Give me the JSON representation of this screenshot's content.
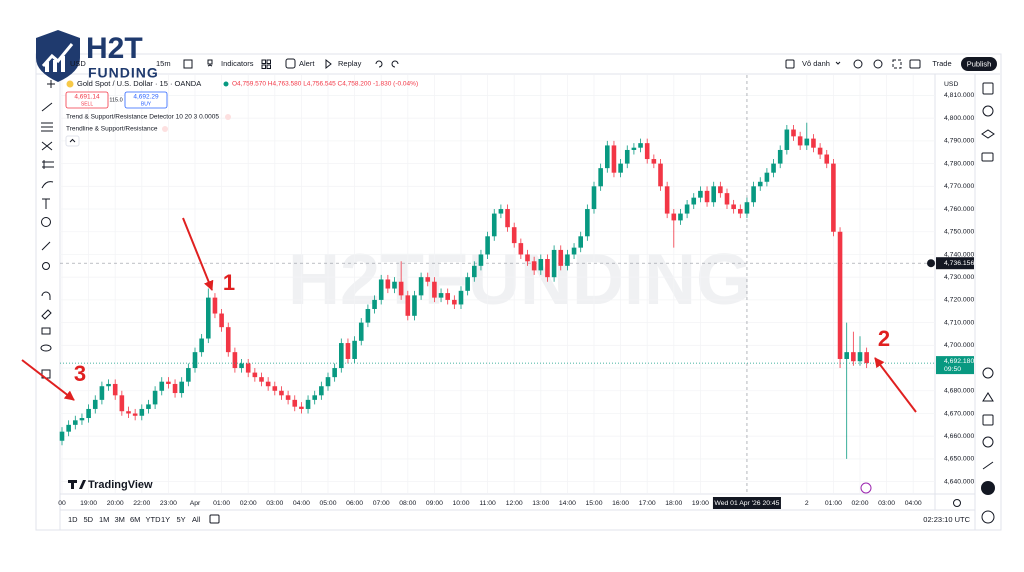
{
  "logo": {
    "brand": "H2T",
    "sub": "FUNDING"
  },
  "watermark": "H2TFUNDING",
  "toolbar": {
    "symbol": "USD",
    "interval": "15m",
    "indicators": "Indicators",
    "alert": "Alert",
    "replay": "Replay",
    "layout": "Vô danh",
    "trade": "Trade",
    "publish": "Publish"
  },
  "legend": {
    "instrument": "Gold Spot / U.S. Dollar · 15 · OANDA",
    "ohlc": "O4,759.570 H4,763.580 L4,756.545 C4,758.200 -1.830 (-0.04%)",
    "sell_price": "4,691.14",
    "sell": "SELL",
    "spread": "115.0",
    "buy_price": "4,692.29",
    "buy": "BUY",
    "studies": [
      "Trend & Support/Resistance Detector 10 20 3 0.0005",
      "Trendline & Support/Resistance"
    ]
  },
  "branding": "TradingView",
  "ranges": [
    "1D",
    "5D",
    "1M",
    "3M",
    "6M",
    "YTD",
    "1Y",
    "5Y",
    "All"
  ],
  "clock": "02:23:10 UTC",
  "annotations": [
    "1",
    "2",
    "3"
  ],
  "chart_data": {
    "type": "candlestick",
    "currency": "USD",
    "up_color": "#089981",
    "down_color": "#f23645",
    "categories": [
      "00",
      null,
      null,
      null,
      "19:00",
      null,
      null,
      null,
      "20:00",
      null,
      null,
      null,
      "22:00",
      null,
      null,
      null,
      "23:00",
      null,
      null,
      null,
      "Apr",
      null,
      null,
      null,
      "01:00",
      null,
      null,
      null,
      "02:00",
      null,
      null,
      null,
      "03:00",
      null,
      null,
      null,
      "04:00",
      null,
      null,
      null,
      "05:00",
      null,
      null,
      null,
      "06:00",
      null,
      null,
      null,
      "07:00",
      null,
      null,
      null,
      "08:00",
      null,
      null,
      null,
      "09:00",
      null,
      null,
      null,
      "10:00",
      null,
      null,
      null,
      "11:00",
      null,
      null,
      null,
      "12:00",
      null,
      null,
      null,
      "13:00",
      null,
      null,
      null,
      "14:00",
      null,
      null,
      null,
      "15:00",
      null,
      null,
      null,
      "16:00",
      null,
      null,
      null,
      "17:00",
      null,
      null,
      null,
      "18:00",
      null,
      null,
      null,
      "19:00",
      null,
      null,
      null,
      null,
      null,
      null,
      null,
      null,
      null,
      null,
      null,
      null,
      null,
      null,
      null,
      "2",
      null,
      null,
      null,
      "01:00",
      null,
      null,
      null,
      "02:00",
      null,
      null,
      null,
      "03:00",
      null,
      null,
      null,
      "04:00"
    ],
    "open": [
      4658,
      4662,
      4665,
      4667,
      4668,
      4672,
      4676,
      4682,
      4683,
      4678,
      4671,
      4670,
      4669,
      4672,
      4674,
      4680,
      4684,
      4683,
      4679,
      4684,
      4690,
      4697,
      4703,
      4721,
      4714,
      4708,
      4697,
      4690,
      4692,
      4688,
      4686,
      4684,
      4682,
      4680,
      4678,
      4676,
      4673,
      4672,
      4676,
      4678,
      4682,
      4686,
      4690,
      4701,
      4694,
      4702,
      4710,
      4716,
      4720,
      4729,
      4725,
      4728,
      4722,
      4713,
      4722,
      4730,
      4728,
      4721,
      4723,
      4720,
      4718,
      4724,
      4730,
      4735,
      4740,
      4748,
      4758,
      4760,
      4752,
      4745,
      4740,
      4737,
      4733,
      4738,
      4730,
      4742,
      4735,
      4740,
      4743,
      4748,
      4760,
      4770,
      4778,
      4788,
      4776,
      4780,
      4786,
      4787,
      4789,
      4782,
      4780,
      4770,
      4758,
      4755,
      4758,
      4762,
      4765,
      4768,
      4763,
      4770,
      4767,
      4762,
      4760,
      4758,
      4763,
      4770,
      4772,
      4776,
      4780,
      4786,
      4795,
      4792,
      4788,
      4791,
      4787,
      4784,
      4780,
      4750,
      4694,
      4697,
      4693,
      4697,
      null,
      null,
      null,
      null,
      null,
      null,
      null
    ],
    "high": [
      4664,
      4667,
      4669,
      4670,
      4674,
      4678,
      4684,
      4685,
      4685,
      4680,
      4673,
      4672,
      4674,
      4676,
      4682,
      4686,
      4686,
      4685,
      4686,
      4692,
      4699,
      4705,
      4725,
      4723,
      4716,
      4710,
      4699,
      4694,
      4694,
      4690,
      4688,
      4686,
      4684,
      4682,
      4680,
      4678,
      4675,
      4678,
      4680,
      4684,
      4688,
      4692,
      4703,
      4703,
      4704,
      4712,
      4718,
      4722,
      4731,
      4731,
      4730,
      4737,
      4724,
      4724,
      4732,
      4732,
      4730,
      4725,
      4725,
      4722,
      4726,
      4732,
      4737,
      4742,
      4750,
      4760,
      4762,
      4762,
      4754,
      4747,
      4742,
      4739,
      4740,
      4740,
      4744,
      4744,
      4742,
      4745,
      4750,
      4762,
      4772,
      4780,
      4790,
      4790,
      4782,
      4788,
      4789,
      4791,
      4791,
      4784,
      4782,
      4772,
      4760,
      4760,
      4764,
      4767,
      4770,
      4770,
      4772,
      4772,
      4769,
      4764,
      4762,
      4765,
      4772,
      4774,
      4778,
      4782,
      4788,
      4797,
      4797,
      4794,
      4798,
      4793,
      4789,
      4786,
      4782,
      4752,
      4710,
      4706,
      4704,
      4699,
      null,
      null,
      null,
      null,
      null,
      null,
      null
    ],
    "low": [
      4656,
      4660,
      4663,
      4665,
      4666,
      4670,
      4674,
      4680,
      4676,
      4669,
      4668,
      4667,
      4667,
      4670,
      4672,
      4678,
      4681,
      4677,
      4677,
      4682,
      4688,
      4695,
      4701,
      4712,
      4706,
      4695,
      4688,
      4688,
      4686,
      4684,
      4682,
      4680,
      4678,
      4676,
      4674,
      4671,
      4670,
      4670,
      4674,
      4676,
      4680,
      4684,
      4688,
      4692,
      4692,
      4700,
      4708,
      4714,
      4718,
      4723,
      4723,
      4720,
      4711,
      4711,
      4720,
      4726,
      4719,
      4719,
      4718,
      4716,
      4716,
      4722,
      4728,
      4733,
      4738,
      4746,
      4756,
      4750,
      4743,
      4738,
      4735,
      4731,
      4731,
      4728,
      4728,
      4733,
      4733,
      4738,
      4741,
      4746,
      4758,
      4768,
      4776,
      4774,
      4774,
      4778,
      4784,
      4785,
      4780,
      4778,
      4768,
      4756,
      4743,
      4753,
      4756,
      4760,
      4763,
      4761,
      4761,
      4765,
      4760,
      4758,
      4756,
      4756,
      4761,
      4768,
      4770,
      4774,
      4778,
      4784,
      4790,
      4786,
      4786,
      4785,
      4782,
      4778,
      4748,
      4690,
      4650,
      4691,
      4691,
      4690,
      null,
      null,
      null,
      null,
      null,
      null,
      null
    ],
    "close": [
      4662,
      4665,
      4667,
      4668,
      4672,
      4676,
      4682,
      4683,
      4678,
      4671,
      4670,
      4669,
      4672,
      4674,
      4680,
      4684,
      4683,
      4679,
      4684,
      4690,
      4697,
      4703,
      4721,
      4714,
      4708,
      4697,
      4690,
      4692,
      4688,
      4686,
      4684,
      4682,
      4680,
      4678,
      4676,
      4673,
      4672,
      4676,
      4678,
      4682,
      4686,
      4690,
      4701,
      4694,
      4702,
      4710,
      4716,
      4720,
      4729,
      4725,
      4728,
      4722,
      4713,
      4722,
      4730,
      4728,
      4721,
      4723,
      4720,
      4718,
      4724,
      4730,
      4735,
      4740,
      4748,
      4758,
      4760,
      4752,
      4745,
      4740,
      4737,
      4733,
      4738,
      4730,
      4742,
      4735,
      4740,
      4743,
      4748,
      4760,
      4770,
      4778,
      4788,
      4776,
      4780,
      4786,
      4787,
      4789,
      4782,
      4780,
      4770,
      4758,
      4755,
      4758,
      4762,
      4765,
      4768,
      4763,
      4770,
      4767,
      4762,
      4760,
      4758,
      4763,
      4770,
      4772,
      4776,
      4780,
      4786,
      4795,
      4792,
      4788,
      4791,
      4787,
      4784,
      4780,
      4750,
      4694,
      4697,
      4693,
      4697,
      4692.18,
      null,
      null,
      null,
      null,
      null,
      null,
      null
    ],
    "ylim": [
      4635,
      4819
    ],
    "yticks": [
      {
        "value": 4640,
        "label": "4,640.000"
      },
      {
        "value": 4650,
        "label": "4,650.000"
      },
      {
        "value": 4660,
        "label": "4,660.000"
      },
      {
        "value": 4670,
        "label": "4,670.000"
      },
      {
        "value": 4680,
        "label": "4,680.000"
      },
      {
        "value": 4690,
        "label": "4,690.000"
      },
      {
        "value": 4700,
        "label": "4,700.000"
      },
      {
        "value": 4710,
        "label": "4,710.000"
      },
      {
        "value": 4720,
        "label": "4,720.000"
      },
      {
        "value": 4730,
        "label": "4,730.000"
      },
      {
        "value": 4740,
        "label": "4,740.000"
      },
      {
        "value": 4750,
        "label": "4,750.000"
      },
      {
        "value": 4760,
        "label": "4,760.000"
      },
      {
        "value": 4770,
        "label": "4,770.000"
      },
      {
        "value": 4780,
        "label": "4,780.000"
      },
      {
        "value": 4790,
        "label": "4,790.000"
      },
      {
        "value": 4800,
        "label": "4,800.000"
      },
      {
        "value": 4810,
        "label": "4,810.000"
      }
    ],
    "grid": true,
    "last_price": {
      "value": 4692.18,
      "label": "4,692.180"
    },
    "countdown": "09:50",
    "crosshair_price": {
      "value": 4736.156,
      "label": "4,736.156"
    },
    "crosshair_time": "Wed 01 Apr '26 20:45"
  }
}
